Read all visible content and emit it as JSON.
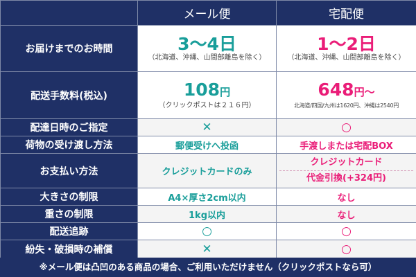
{
  "header": {
    "mail_label": "メール便",
    "home_label": "宅配便"
  },
  "rows": {
    "delivery_time": {
      "label": "お届けまでのお時間",
      "mail_value": "3〜4日",
      "mail_note": "（北海道、沖縄、山間部離島を除く）",
      "home_value": "1〜2日",
      "home_note": "（北海道、沖縄、山間部離島を除く）"
    },
    "shipping_fee": {
      "label": "配送手数料(税込)",
      "mail_value": "108",
      "mail_unit": "円",
      "mail_note": "（クリックポストは２１６円）",
      "home_value": "648",
      "home_unit": "円〜",
      "home_note": "北海道/四国/九州は1620円、沖縄は2540円"
    },
    "date_spec": {
      "label": "配達日時のご指定",
      "mail_value": "✕",
      "home_value": "○"
    },
    "handover": {
      "label": "荷物の受け渡し方法",
      "mail_value": "郵便受けへ投函",
      "home_value": "手渡しまたは宅配BOX"
    },
    "payment": {
      "label": "お支払い方法",
      "mail_value": "クレジットカードのみ",
      "home_value_1": "クレジットカード",
      "home_value_2": "代金引換(+324円)"
    },
    "size_limit": {
      "label": "大きさの制限",
      "mail_value": "A4×厚さ2cm以内",
      "home_value": "なし"
    },
    "weight_limit": {
      "label": "重さの制限",
      "mail_value": "1kg以内",
      "home_value": "なし"
    },
    "tracking": {
      "label": "配送追跡",
      "mail_value": "○",
      "home_value": "○"
    },
    "compensation": {
      "label": "紛失・破損時の補償",
      "mail_value": "✕",
      "home_value": "○"
    }
  },
  "footer": {
    "note": "※メール便は凸凹のある商品の場合、ご利用いただけません（クリックポストなら可）"
  },
  "colors": {
    "navy": "#1f3066",
    "teal": "#199e9a",
    "pink": "#ea1d78"
  }
}
